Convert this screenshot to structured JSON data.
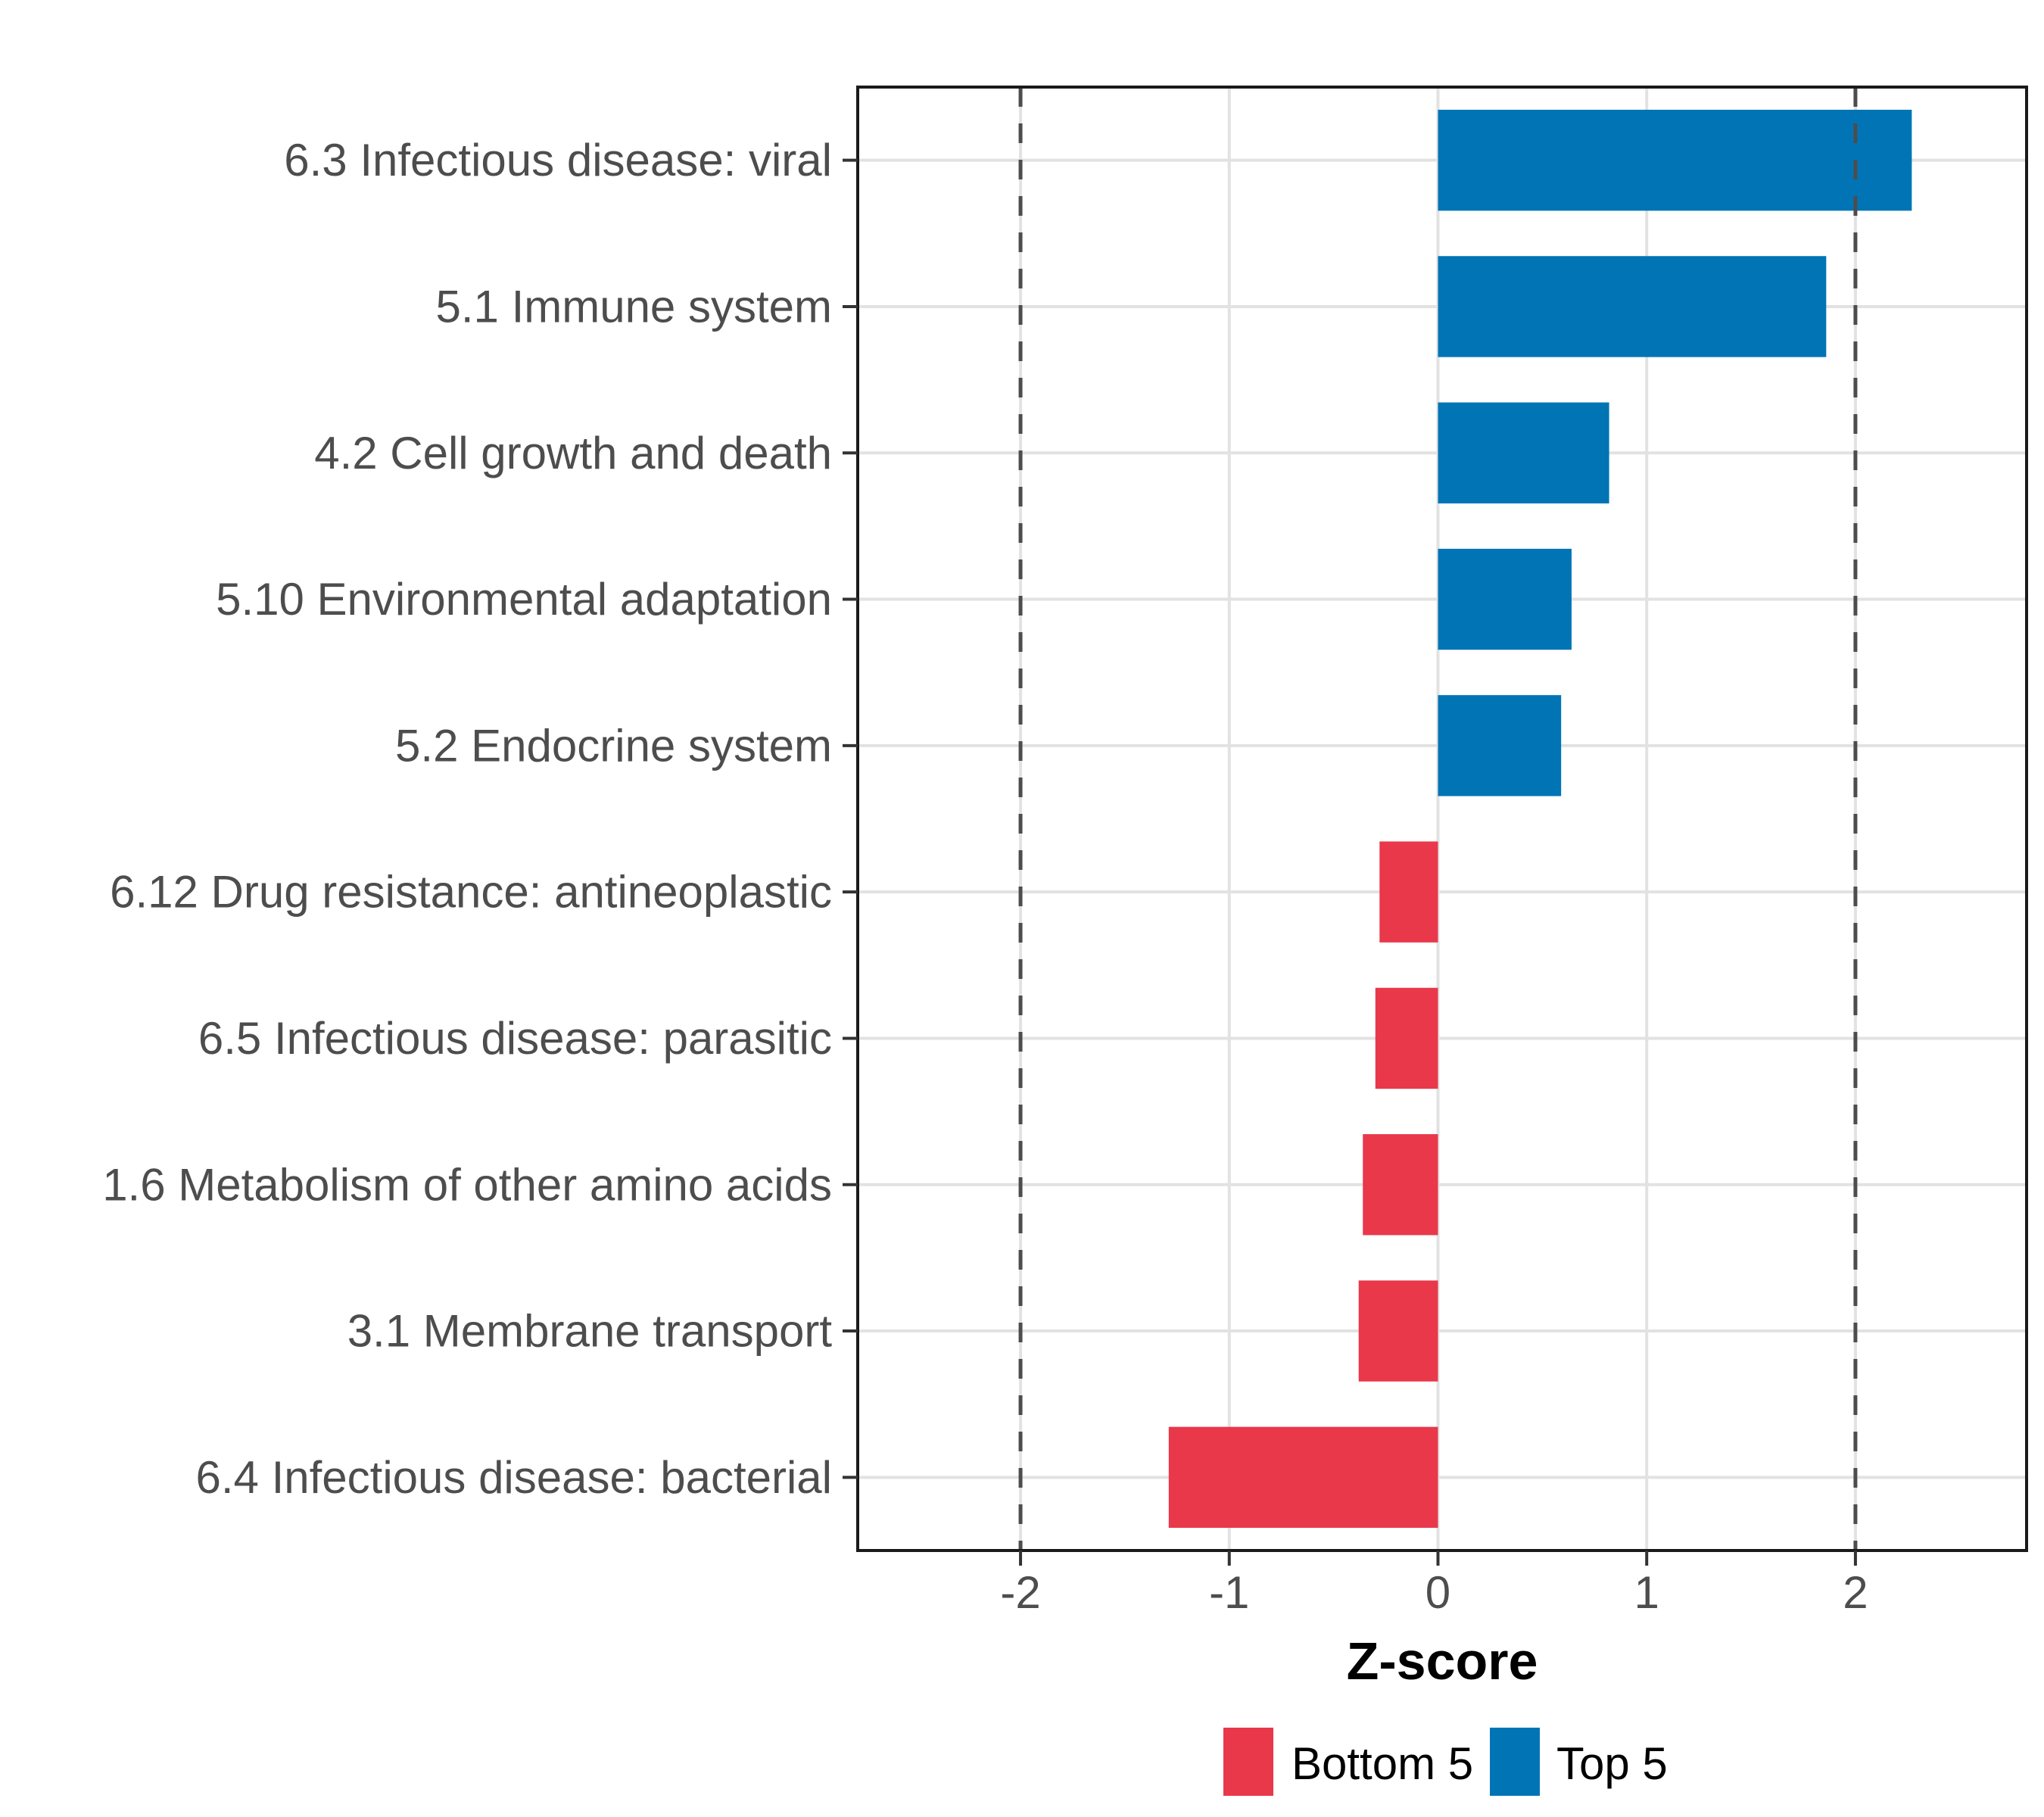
{
  "figure": {
    "background_color": "#FFFFFF",
    "panel": {
      "border_color": "#1A1A1A",
      "grid_color": "#E2E2E2",
      "tick_color": "#333333"
    },
    "axis": {
      "x_title": "Z-score",
      "x_tick_labels": [
        "-2",
        "-1",
        "0",
        "1",
        "2"
      ],
      "tick_label_color": "#4D4D4D",
      "title_color": "#000000"
    },
    "reference_lines": {
      "x_values": [
        -2,
        2
      ],
      "style": "dashed",
      "color": "#4D4D4D"
    },
    "legend": {
      "position": "bottom",
      "items": [
        {
          "label": "Bottom 5",
          "color": "#E8384A"
        },
        {
          "label": "Top 5",
          "color": "#0074B5"
        }
      ]
    }
  },
  "chart_data": {
    "type": "bar",
    "orientation": "horizontal",
    "title": "",
    "xlabel": "Z-score",
    "ylabel": "",
    "xlim": [
      -2.78,
      2.82
    ],
    "x_ticks": [
      -2,
      -1,
      0,
      1,
      2
    ],
    "grid": true,
    "legend_position": "bottom",
    "reference_lines_x": [
      -2,
      2
    ],
    "categories": [
      "6.3 Infectious disease: viral",
      "5.1 Immune system",
      "4.2 Cell growth and death",
      "5.10 Environmental adaptation",
      "5.2 Endocrine system",
      "6.12 Drug resistance: antineoplastic",
      "6.5 Infectious disease: parasitic",
      "1.6 Metabolism of other amino acids",
      "3.1 Membrane transport",
      "6.4 Infectious disease: bacterial"
    ],
    "values": [
      2.27,
      1.86,
      0.82,
      0.64,
      0.59,
      -0.28,
      -0.3,
      -0.36,
      -0.38,
      -1.29
    ],
    "groups": [
      "Top 5",
      "Top 5",
      "Top 5",
      "Top 5",
      "Top 5",
      "Bottom 5",
      "Bottom 5",
      "Bottom 5",
      "Bottom 5",
      "Bottom 5"
    ],
    "series": [
      {
        "name": "Top 5",
        "color": "#0074B5"
      },
      {
        "name": "Bottom 5",
        "color": "#E8384A"
      }
    ]
  }
}
